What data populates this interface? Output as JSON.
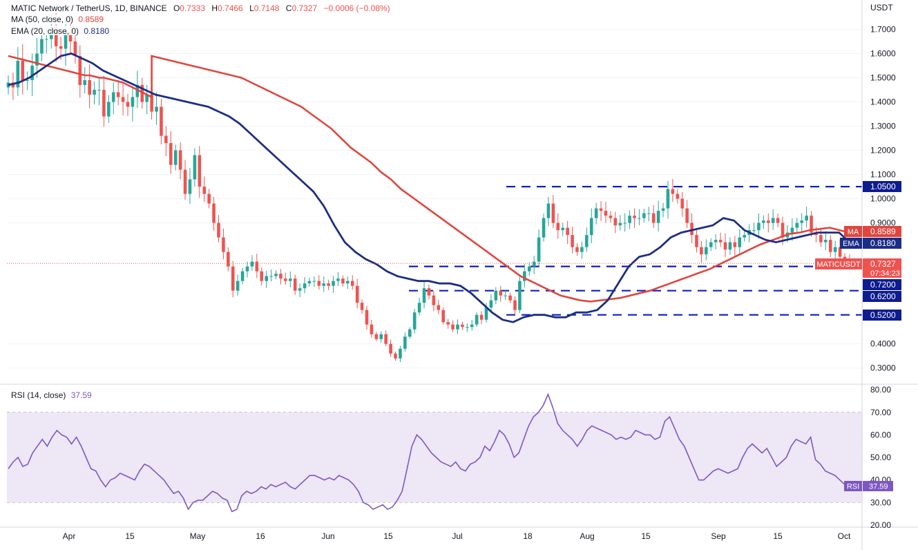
{
  "header": {
    "symbol_line": "MATIC Network / TetherUS, 1D, BINANCE",
    "ohlc": {
      "o_label": "O",
      "o": "0.7333",
      "h_label": "H",
      "h": "0.7466",
      "l_label": "L",
      "l": "0.7148",
      "c_label": "C",
      "c": "0.7327",
      "change": "−0.0006 (−0.08%)"
    },
    "ma_label": "MA (50, close, 0)",
    "ma_value": "0.8589",
    "ema_label": "EMA (20, close, 0)",
    "ema_value": "0.8180"
  },
  "price_axis": {
    "currency": "USDT",
    "ticks": [
      "1.7000",
      "1.6000",
      "1.5000",
      "1.4000",
      "1.3000",
      "1.2000",
      "1.1000",
      "1.0000",
      "0.9000",
      "0.4000",
      "0.3000"
    ],
    "tick_values": [
      1.7,
      1.6,
      1.5,
      1.4,
      1.3,
      1.2,
      1.1,
      1.0,
      0.9,
      0.4,
      0.3
    ],
    "level_tags": [
      {
        "text": "1.0500",
        "value": 1.05
      },
      {
        "text": "0.7200",
        "value": 0.72
      },
      {
        "text": "0.6200",
        "value": 0.62
      },
      {
        "text": "0.5200",
        "value": 0.52
      }
    ],
    "ma_tag": {
      "label": "MA",
      "text": "0.8589",
      "value": 0.8589
    },
    "ema_tag": {
      "label": "EMA",
      "text": "0.8180",
      "value": 0.818
    },
    "price_tag": {
      "label": "MATICUSDT",
      "text": "0.7327",
      "countdown": "07:34:23",
      "value": 0.7327
    }
  },
  "rsi": {
    "label": "RSI (14, close)",
    "value": "37.59",
    "tag_label": "RSI",
    "tag_value": "37.59",
    "ticks": [
      "80.00",
      "70.00",
      "60.00",
      "50.00",
      "40.00",
      "30.00",
      "20.00"
    ],
    "tick_values": [
      80,
      70,
      60,
      50,
      40,
      30,
      20
    ],
    "band": [
      30,
      70
    ]
  },
  "x_axis": {
    "labels": [
      "Apr",
      "15",
      "May",
      "16",
      "Jun",
      "15",
      "Jul",
      "18",
      "Aug",
      "15",
      "Sep",
      "15",
      "Oct"
    ]
  },
  "colors": {
    "up": "#26a69a",
    "down": "#ef5350",
    "ma": "#e0463e",
    "ema": "#1c2d85",
    "rsi_line": "#7e57c2",
    "rsi_band": "#ede7f6",
    "level_line": "#0d1ebd",
    "level_tag_bg": "#0d1c8e",
    "grid": "#f0f3fa"
  },
  "chart_data": {
    "type": "candlestick",
    "title": "MATIC Network / TetherUS, 1D, BINANCE",
    "x_start": "2021-03-23",
    "x_end": "2021-10-03",
    "y_unit": "USDT",
    "ylim": [
      0.26,
      1.79
    ],
    "last_candle": {
      "date": "2021-09-21",
      "o": 0.7333,
      "h": 0.7466,
      "l": 0.7148,
      "c": 0.7327
    },
    "closes": [
      1.48,
      1.46,
      1.57,
      1.49,
      1.49,
      1.55,
      1.6,
      1.66,
      1.66,
      1.7,
      1.63,
      1.62,
      1.69,
      1.65,
      1.59,
      1.47,
      1.49,
      1.43,
      1.45,
      1.45,
      1.34,
      1.4,
      1.44,
      1.42,
      1.4,
      1.38,
      1.42,
      1.47,
      1.4,
      1.43,
      1.36,
      1.38,
      1.26,
      1.23,
      1.14,
      1.2,
      1.12,
      1.02,
      1.08,
      1.18,
      1.05,
      1.02,
      0.98,
      0.9,
      0.84,
      0.78,
      0.72,
      0.62,
      0.66,
      0.7,
      0.72,
      0.74,
      0.7,
      0.66,
      0.68,
      0.68,
      0.69,
      0.67,
      0.66,
      0.67,
      0.62,
      0.63,
      0.65,
      0.66,
      0.66,
      0.64,
      0.65,
      0.64,
      0.66,
      0.67,
      0.65,
      0.66,
      0.64,
      0.57,
      0.54,
      0.48,
      0.44,
      0.42,
      0.44,
      0.4,
      0.36,
      0.34,
      0.38,
      0.43,
      0.46,
      0.53,
      0.57,
      0.63,
      0.6,
      0.56,
      0.54,
      0.49,
      0.48,
      0.46,
      0.48,
      0.47,
      0.47,
      0.48,
      0.52,
      0.5,
      0.55,
      0.58,
      0.62,
      0.6,
      0.6,
      0.58,
      0.54,
      0.66,
      0.7,
      0.72,
      0.74,
      0.84,
      0.92,
      0.98,
      0.9,
      0.87,
      0.88,
      0.85,
      0.8,
      0.78,
      0.8,
      0.85,
      0.92,
      0.96,
      0.95,
      0.93,
      0.92,
      0.89,
      0.9,
      0.9,
      0.93,
      0.92,
      0.92,
      0.94,
      0.94,
      0.9,
      0.95,
      0.96,
      1.04,
      1.02,
      1.0,
      0.96,
      0.9,
      0.85,
      0.8,
      0.77,
      0.8,
      0.82,
      0.83,
      0.82,
      0.79,
      0.82,
      0.8,
      0.84,
      0.85,
      0.87,
      0.87,
      0.9,
      0.91,
      0.9,
      0.92,
      0.9,
      0.84,
      0.86,
      0.88,
      0.9,
      0.91,
      0.93,
      0.86,
      0.85,
      0.82,
      0.83,
      0.78,
      0.8,
      0.76,
      0.75,
      0.7327
    ],
    "ma50": [
      1.59,
      1.58,
      1.57,
      1.56,
      1.55,
      1.54,
      1.53,
      1.52,
      1.51,
      1.5,
      1.48,
      1.46,
      1.44,
      1.42,
      1.4,
      1.38,
      1.35,
      1.32,
      1.29,
      1.25,
      1.21,
      1.18,
      1.15,
      1.11,
      1.08,
      1.04,
      1.01,
      0.98,
      0.95,
      0.92,
      0.89,
      0.86,
      0.83,
      0.8,
      0.77,
      0.74,
      0.71,
      0.68,
      0.66,
      0.64,
      0.62,
      0.6,
      0.59,
      0.58,
      0.575,
      0.58,
      0.585,
      0.59,
      0.6,
      0.61,
      0.62,
      0.635,
      0.65,
      0.665,
      0.68,
      0.695,
      0.71,
      0.73,
      0.75,
      0.77,
      0.79,
      0.81,
      0.825,
      0.84,
      0.855,
      0.86,
      0.87,
      0.875,
      0.88,
      0.87,
      0.8589
    ],
    "ma50_start": "2021-04-24",
    "ema20": [
      1.47,
      1.48,
      1.5,
      1.53,
      1.56,
      1.59,
      1.6,
      1.58,
      1.56,
      1.53,
      1.51,
      1.49,
      1.47,
      1.45,
      1.43,
      1.42,
      1.41,
      1.4,
      1.39,
      1.38,
      1.36,
      1.34,
      1.31,
      1.27,
      1.23,
      1.19,
      1.15,
      1.11,
      1.07,
      1.03,
      0.97,
      0.89,
      0.82,
      0.78,
      0.75,
      0.73,
      0.7,
      0.68,
      0.67,
      0.66,
      0.66,
      0.65,
      0.65,
      0.64,
      0.61,
      0.57,
      0.53,
      0.5,
      0.49,
      0.51,
      0.52,
      0.52,
      0.51,
      0.51,
      0.53,
      0.53,
      0.54,
      0.58,
      0.65,
      0.72,
      0.76,
      0.77,
      0.8,
      0.84,
      0.86,
      0.87,
      0.88,
      0.89,
      0.92,
      0.91,
      0.87,
      0.85,
      0.83,
      0.82,
      0.83,
      0.84,
      0.85,
      0.86,
      0.86,
      0.86,
      0.82
    ],
    "rsi": [
      45,
      48,
      50,
      46,
      47,
      52,
      55,
      58,
      55,
      59,
      62,
      60,
      59,
      56,
      59,
      55,
      50,
      45,
      44,
      40,
      37,
      40,
      41,
      43,
      42,
      41,
      40,
      44,
      47,
      46,
      44,
      42,
      40,
      37,
      34,
      35,
      32,
      27,
      30,
      31,
      31,
      33,
      35,
      34,
      32,
      31,
      26,
      27,
      33,
      35,
      34,
      35,
      37,
      36,
      38,
      37,
      38,
      39,
      37,
      36,
      38,
      40,
      42,
      42,
      41,
      40,
      41,
      40,
      42,
      41,
      40,
      38,
      35,
      30,
      29,
      27,
      28,
      29,
      27,
      28,
      31,
      35,
      45,
      55,
      60,
      58,
      55,
      52,
      50,
      48,
      47,
      46,
      48,
      45,
      44,
      47,
      48,
      50,
      55,
      53,
      57,
      62,
      60,
      56,
      50,
      52,
      58,
      64,
      68,
      70,
      73,
      78,
      72,
      65,
      62,
      60,
      58,
      55,
      58,
      62,
      64,
      63,
      62,
      61,
      60,
      58,
      59,
      58,
      59,
      62,
      61,
      60,
      60,
      58,
      59,
      66,
      68,
      63,
      58,
      55,
      50,
      45,
      40,
      40,
      42,
      44,
      45,
      44,
      43,
      44,
      45,
      50,
      54,
      56,
      54,
      52,
      54,
      50,
      46,
      48,
      50,
      55,
      58,
      57,
      56,
      59,
      49,
      47,
      44,
      43,
      42,
      40,
      38,
      37.59
    ]
  }
}
